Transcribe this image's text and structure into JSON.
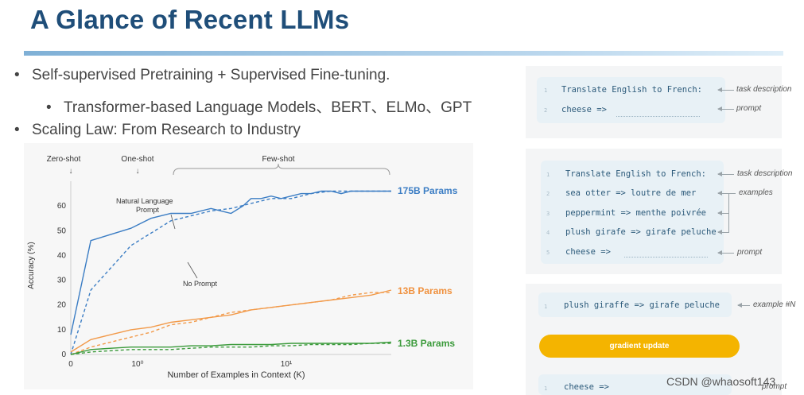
{
  "title": "A Glance of Recent LLMs",
  "bullets": [
    {
      "text": "Self-supervised Pretraining + Supervised Fine-tuning.",
      "level": 1
    },
    {
      "text": "Transformer-based Language Models、BERT、ELMo、GPT",
      "level": 2
    },
    {
      "text": "Scaling Law: From Research to Industry",
      "level": 1
    }
  ],
  "chart_data": {
    "type": "line",
    "xlabel": "Number of Examples in Context  (K)",
    "ylabel": "Accuracy (%)",
    "ylim": [
      0,
      70
    ],
    "yticks": [
      "0",
      "10",
      "20",
      "30",
      "40",
      "50",
      "60"
    ],
    "xticks": [
      "0",
      "10⁰",
      "10¹"
    ],
    "top_labels": {
      "zero_shot": "Zero-shot",
      "one_shot": "One-shot",
      "few_shot": "Few-shot",
      "arrow": "↓"
    },
    "annotations": {
      "nl_prompt_1": "Natural Language",
      "nl_prompt_2": "Prompt",
      "no_prompt": "No Prompt"
    },
    "grid": false,
    "series": [
      {
        "name": "175B Params",
        "color": "#3b7dc4",
        "label_color": "#3b7dc4",
        "solid": [
          [
            0,
            8
          ],
          [
            1,
            46
          ],
          [
            3,
            51
          ],
          [
            4,
            55
          ],
          [
            5,
            57
          ],
          [
            6,
            57
          ],
          [
            7,
            59
          ],
          [
            7.5,
            58
          ],
          [
            8,
            57
          ],
          [
            8.6,
            60
          ],
          [
            9,
            63
          ],
          [
            9.5,
            63
          ],
          [
            10,
            64
          ],
          [
            10.5,
            63
          ],
          [
            11,
            64
          ],
          [
            11.5,
            65
          ],
          [
            12,
            65
          ],
          [
            12.5,
            66
          ],
          [
            13,
            66
          ],
          [
            13.5,
            65
          ],
          [
            14,
            66
          ],
          [
            15,
            66
          ],
          [
            16,
            66
          ]
        ],
        "dashed": [
          [
            0,
            0
          ],
          [
            1,
            26
          ],
          [
            2,
            35
          ],
          [
            3,
            44
          ],
          [
            4,
            49
          ],
          [
            5,
            54
          ],
          [
            6,
            56
          ],
          [
            7,
            58
          ],
          [
            8,
            59
          ],
          [
            9,
            61
          ],
          [
            10,
            63
          ],
          [
            11,
            63
          ],
          [
            12,
            65
          ],
          [
            13,
            66
          ],
          [
            14,
            66
          ],
          [
            15,
            66
          ],
          [
            16,
            66
          ]
        ]
      },
      {
        "name": "13B Params",
        "color": "#f29a4a",
        "label_color": "#f0913e",
        "solid": [
          [
            0,
            1
          ],
          [
            1,
            6
          ],
          [
            2,
            8
          ],
          [
            3,
            10
          ],
          [
            4,
            11
          ],
          [
            5,
            13
          ],
          [
            6,
            14
          ],
          [
            7,
            15
          ],
          [
            8,
            16
          ],
          [
            9,
            18
          ],
          [
            10,
            19
          ],
          [
            11,
            20
          ],
          [
            12,
            21
          ],
          [
            13,
            22
          ],
          [
            14,
            23
          ],
          [
            15,
            24
          ],
          [
            16,
            26
          ]
        ],
        "dashed": [
          [
            0,
            0
          ],
          [
            1,
            3
          ],
          [
            2,
            5
          ],
          [
            3,
            7
          ],
          [
            4,
            9
          ],
          [
            5,
            12
          ],
          [
            6,
            13
          ],
          [
            7,
            15
          ],
          [
            8,
            17
          ],
          [
            9,
            18
          ],
          [
            10,
            19
          ],
          [
            11,
            20
          ],
          [
            12,
            21
          ],
          [
            13,
            22
          ],
          [
            14,
            24
          ],
          [
            15,
            25
          ],
          [
            16,
            25
          ]
        ]
      },
      {
        "name": "1.3B Params",
        "color": "#3a9a3a",
        "label_color": "#3a9a3a",
        "solid": [
          [
            0,
            0
          ],
          [
            1,
            2
          ],
          [
            2,
            2.5
          ],
          [
            3,
            3
          ],
          [
            4,
            3
          ],
          [
            5,
            3
          ],
          [
            6,
            3.5
          ],
          [
            7,
            3.5
          ],
          [
            8,
            4
          ],
          [
            9,
            4
          ],
          [
            10,
            4
          ],
          [
            11,
            4.5
          ],
          [
            12,
            4.5
          ],
          [
            13,
            4.5
          ],
          [
            14,
            4.5
          ],
          [
            15,
            4.5
          ],
          [
            16,
            5
          ]
        ],
        "dashed": [
          [
            0,
            0
          ],
          [
            1,
            1
          ],
          [
            2,
            1.5
          ],
          [
            3,
            2
          ],
          [
            4,
            2
          ],
          [
            5,
            2
          ],
          [
            6,
            2.5
          ],
          [
            7,
            3
          ],
          [
            8,
            3
          ],
          [
            9,
            3
          ],
          [
            10,
            3.5
          ],
          [
            11,
            3.5
          ],
          [
            12,
            4
          ],
          [
            13,
            4
          ],
          [
            14,
            4
          ],
          [
            15,
            4.5
          ],
          [
            16,
            4.5
          ]
        ]
      }
    ]
  },
  "panel_zero_shot": {
    "line1": "Translate English to French:",
    "line2": "cheese =>",
    "nums": [
      "1",
      "2"
    ],
    "ann_task": "task description",
    "ann_prompt": "prompt"
  },
  "panel_few_shot": {
    "lines": [
      "Translate English to French:",
      "sea otter => loutre de mer",
      "peppermint => menthe poivrée",
      "plush girafe => girafe peluche",
      "cheese =>"
    ],
    "nums": [
      "1",
      "2",
      "3",
      "4",
      "5"
    ],
    "ann_task": "task description",
    "ann_examples": "examples",
    "ann_prompt": "prompt"
  },
  "panel_finetune": {
    "example_line": "plush giraffe => girafe peluche",
    "example_num": "1",
    "ann_example": "example #N",
    "button_label": "gradient update",
    "prompt_line": "cheese =>",
    "prompt_num": "1",
    "ann_prompt": "prompt"
  },
  "watermark": "CSDN @whaosoft143",
  "colors": {
    "title": "#1f4e79",
    "accent_button": "#f4b400",
    "code": "#2c5a7a"
  }
}
